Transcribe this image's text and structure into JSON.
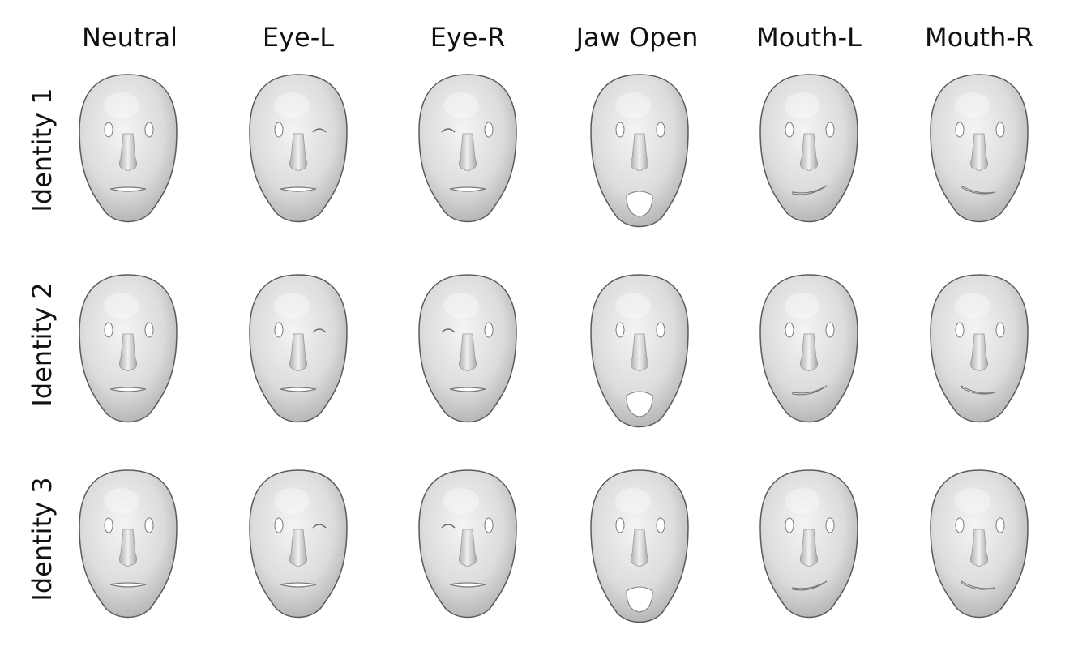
{
  "columns": [
    "Neutral",
    "Eye-L",
    "Eye-R",
    "Jaw Open",
    "Mouth-L",
    "Mouth-R"
  ],
  "rows": [
    "Identity 1",
    "Identity 2",
    "Identity 3"
  ],
  "faces": [
    [
      {
        "expr": "neutral"
      },
      {
        "expr": "eye-l"
      },
      {
        "expr": "eye-r"
      },
      {
        "expr": "jaw"
      },
      {
        "expr": "mouth-l"
      },
      {
        "expr": "mouth-r"
      }
    ],
    [
      {
        "expr": "neutral"
      },
      {
        "expr": "eye-l"
      },
      {
        "expr": "eye-r"
      },
      {
        "expr": "jaw"
      },
      {
        "expr": "mouth-l"
      },
      {
        "expr": "mouth-r"
      }
    ],
    [
      {
        "expr": "neutral"
      },
      {
        "expr": "eye-l"
      },
      {
        "expr": "eye-r"
      },
      {
        "expr": "jaw"
      },
      {
        "expr": "mouth-l"
      },
      {
        "expr": "mouth-r"
      }
    ]
  ],
  "colors": {
    "skin_light": "#f2f2f2",
    "skin_mid": "#d0d0d0",
    "skin_dark": "#8c8c8c",
    "outline": "#5a5a5a",
    "hole": "#ffffff",
    "text": "#111111"
  }
}
